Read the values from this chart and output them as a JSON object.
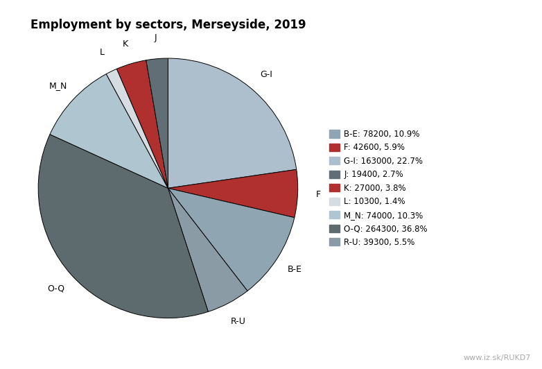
{
  "title": "Employment by sectors, Merseyside, 2019",
  "ordered_sectors": [
    "G-I",
    "F",
    "B-E",
    "R-U",
    "O-Q",
    "M_N",
    "L",
    "K",
    "J"
  ],
  "ordered_values": [
    163000,
    42600,
    78200,
    39300,
    264300,
    74000,
    10300,
    27000,
    19400
  ],
  "ordered_colors": [
    "#adbfcc",
    "#b03030",
    "#8fa5b2",
    "#8a9ba5",
    "#5d6a6e",
    "#afc5cf",
    "#d5dde2",
    "#b03030",
    "#616e75"
  ],
  "legend_sectors": [
    "B-E",
    "F",
    "G-I",
    "J",
    "K",
    "L",
    "M_N",
    "O-Q",
    "R-U"
  ],
  "legend_colors": [
    "#8fa5b2",
    "#b03030",
    "#adbfcc",
    "#616e75",
    "#b03030",
    "#d5dde2",
    "#afc5cf",
    "#5d6a6e",
    "#8a9ba5"
  ],
  "legend_labels": [
    "B-E: 78200, 10.9%",
    "F: 42600, 5.9%",
    "G-I: 163000, 22.7%",
    "J: 19400, 2.7%",
    "K: 27000, 3.8%",
    "L: 10300, 1.4%",
    "M_N: 74000, 10.3%",
    "O-Q: 264300, 36.8%",
    "R-U: 39300, 5.5%"
  ],
  "watermark": "www.iz.sk/RUKD7",
  "background_color": "#ffffff"
}
